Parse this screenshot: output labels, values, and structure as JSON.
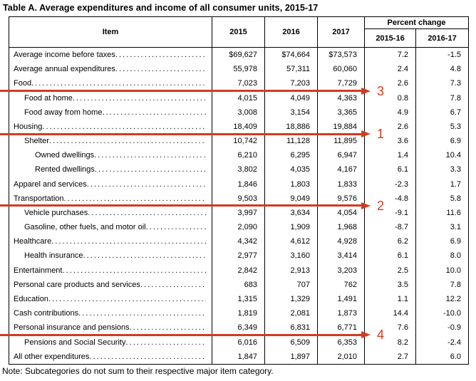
{
  "title": "Table A. Average expenditures and income of all consumer units, 2015-17",
  "note": "Note: Subcategories do not sum to their respective major item category.",
  "table": {
    "headers": {
      "item": "Item",
      "y2015": "2015",
      "y2016": "2016",
      "y2017": "2017",
      "percent_change": "Percent change",
      "pc1516": "2015-16",
      "pc1617": "2016-17"
    },
    "rows": [
      {
        "item": "Average income before taxes",
        "indent": 0,
        "v2015": "$69,627",
        "v2016": "$74,664",
        "v2017": "$73,573",
        "pc1516": "7.2",
        "pc1617": "-1.5"
      },
      {
        "item": "Average annual expenditures",
        "indent": 0,
        "v2015": "55,978",
        "v2016": "57,311",
        "v2017": "60,060",
        "pc1516": "2.4",
        "pc1617": "4.8"
      },
      {
        "item": "Food",
        "indent": 0,
        "v2015": "7,023",
        "v2016": "7,203",
        "v2017": "7,729",
        "pc1516": "2.6",
        "pc1617": "7.3"
      },
      {
        "item": "Food at home",
        "indent": 1,
        "v2015": "4,015",
        "v2016": "4,049",
        "v2017": "4,363",
        "pc1516": "0.8",
        "pc1617": "7.8"
      },
      {
        "item": "Food away from home",
        "indent": 1,
        "v2015": "3,008",
        "v2016": "3,154",
        "v2017": "3,365",
        "pc1516": "4.9",
        "pc1617": "6.7"
      },
      {
        "item": "Housing",
        "indent": 0,
        "v2015": "18,409",
        "v2016": "18,886",
        "v2017": "19,884",
        "pc1516": "2.6",
        "pc1617": "5.3"
      },
      {
        "item": "Shelter",
        "indent": 1,
        "v2015": "10,742",
        "v2016": "11,128",
        "v2017": "11,895",
        "pc1516": "3.6",
        "pc1617": "6.9"
      },
      {
        "item": "Owned dwellings",
        "indent": 2,
        "v2015": "6,210",
        "v2016": "6,295",
        "v2017": "6,947",
        "pc1516": "1.4",
        "pc1617": "10.4"
      },
      {
        "item": "Rented dwellings",
        "indent": 2,
        "v2015": "3,802",
        "v2016": "4,035",
        "v2017": "4,167",
        "pc1516": "6.1",
        "pc1617": "3.3"
      },
      {
        "item": "Apparel and services",
        "indent": 0,
        "v2015": "1,846",
        "v2016": "1,803",
        "v2017": "1,833",
        "pc1516": "-2.3",
        "pc1617": "1.7"
      },
      {
        "item": "Transportation",
        "indent": 0,
        "v2015": "9,503",
        "v2016": "9,049",
        "v2017": "9,576",
        "pc1516": "-4.8",
        "pc1617": "5.8"
      },
      {
        "item": "Vehicle purchases",
        "indent": 1,
        "v2015": "3,997",
        "v2016": "3,634",
        "v2017": "4,054",
        "pc1516": "-9.1",
        "pc1617": "11.6"
      },
      {
        "item": "Gasoline, other fuels, and motor oil",
        "indent": 1,
        "v2015": "2,090",
        "v2016": "1,909",
        "v2017": "1,968",
        "pc1516": "-8.7",
        "pc1617": "3.1"
      },
      {
        "item": "Healthcare",
        "indent": 0,
        "v2015": "4,342",
        "v2016": "4,612",
        "v2017": "4,928",
        "pc1516": "6.2",
        "pc1617": "6.9"
      },
      {
        "item": "Health insurance",
        "indent": 1,
        "v2015": "2,977",
        "v2016": "3,160",
        "v2017": "3,414",
        "pc1516": "6.1",
        "pc1617": "8.0"
      },
      {
        "item": "Entertainment",
        "indent": 0,
        "v2015": "2,842",
        "v2016": "2,913",
        "v2017": "3,203",
        "pc1516": "2.5",
        "pc1617": "10.0"
      },
      {
        "item": "Personal care products and services",
        "indent": 0,
        "v2015": "683",
        "v2016": "707",
        "v2017": "762",
        "pc1516": "3.5",
        "pc1617": "7.8"
      },
      {
        "item": "Education",
        "indent": 0,
        "v2015": "1,315",
        "v2016": "1,329",
        "v2017": "1,491",
        "pc1516": "1.1",
        "pc1617": "12.2"
      },
      {
        "item": "Cash contributions",
        "indent": 0,
        "v2015": "1,819",
        "v2016": "2,081",
        "v2017": "1,873",
        "pc1516": "14.4",
        "pc1617": "-10.0"
      },
      {
        "item": "Personal insurance and pensions",
        "indent": 0,
        "v2015": "6,349",
        "v2016": "6,831",
        "v2017": "6,771",
        "pc1516": "7.6",
        "pc1617": "-0.9"
      },
      {
        "item": "Pensions and Social Security",
        "indent": 1,
        "v2015": "6,016",
        "v2016": "6,509",
        "v2017": "6,353",
        "pc1516": "8.2",
        "pc1617": "-2.4"
      },
      {
        "item": "All other expenditures",
        "indent": 0,
        "v2015": "1,847",
        "v2016": "1,897",
        "v2017": "2,010",
        "pc1516": "2.7",
        "pc1617": "6.0"
      }
    ]
  },
  "annotations": {
    "arrow_color": "#d23b20",
    "arrows": [
      {
        "label": "3",
        "after_row": 3
      },
      {
        "label": "1",
        "after_row": 6
      },
      {
        "label": "2",
        "after_row": 11
      },
      {
        "label": "4",
        "after_row": 20
      }
    ]
  }
}
